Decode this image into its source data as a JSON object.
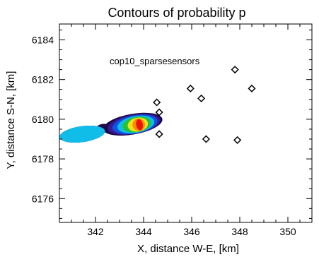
{
  "chart_data": {
    "type": "contour",
    "title": "Contours of probability p",
    "xlabel": "X, distance W-E, [km]",
    "ylabel": "Y, distance S-N, [km]",
    "xlim": [
      340.5,
      351
    ],
    "ylim": [
      6174.8,
      6184.8
    ],
    "xticks": [
      342,
      344,
      346,
      348,
      350
    ],
    "yticks": [
      6176,
      6178,
      6180,
      6182,
      6184
    ],
    "x_minor_step": 0.5,
    "y_minor_step": 0.5,
    "annotation": "cop10_sparsesensors",
    "grid": false,
    "contour_levels": [
      {
        "color": "#1a0a4a"
      },
      {
        "color": "#3a1890"
      },
      {
        "color": "#0a55e6"
      },
      {
        "color": "#10bde8"
      },
      {
        "color": "#22c23a"
      },
      {
        "color": "#f0e418"
      },
      {
        "color": "#ff8c00"
      },
      {
        "color": "#e8140a"
      }
    ],
    "sensors": [
      {
        "x": 344.55,
        "y": 6180.85
      },
      {
        "x": 344.65,
        "y": 6180.35
      },
      {
        "x": 344.65,
        "y": 6179.25
      },
      {
        "x": 345.95,
        "y": 6181.55
      },
      {
        "x": 346.4,
        "y": 6181.05
      },
      {
        "x": 346.6,
        "y": 6179.0
      },
      {
        "x": 347.8,
        "y": 6182.5
      },
      {
        "x": 348.5,
        "y": 6181.55
      },
      {
        "x": 347.9,
        "y": 6178.95
      }
    ]
  }
}
